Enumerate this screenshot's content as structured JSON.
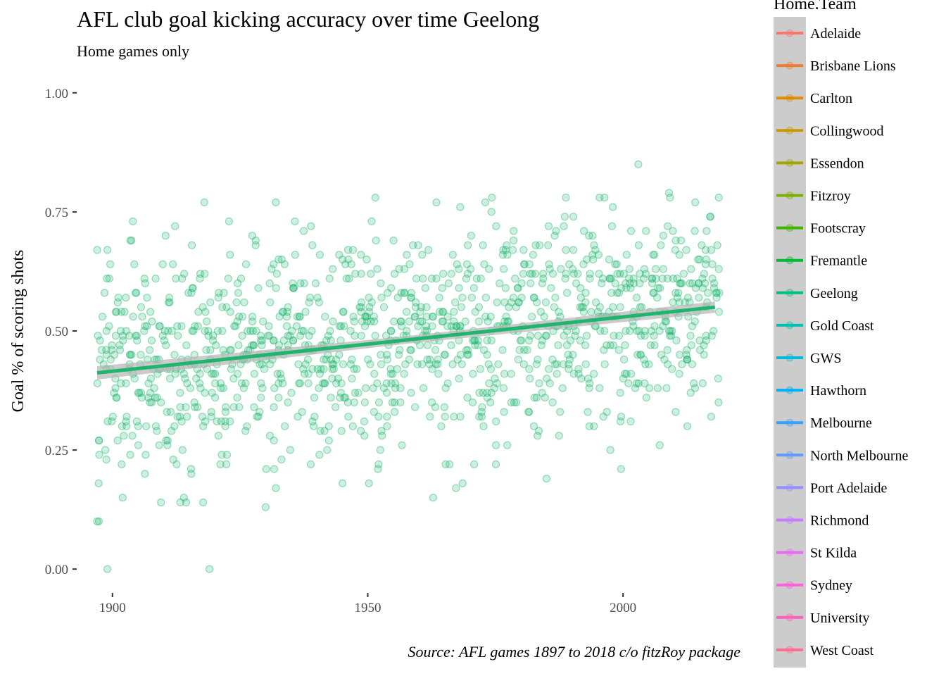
{
  "chart_data": {
    "type": "scatter",
    "title": "AFL club goal kicking accuracy over time Geelong",
    "subtitle": "Home games only",
    "caption": "Source: AFL games 1897 to 2018 c/o fitzRoy package",
    "xlabel": "",
    "ylabel": "Goal % of scoring shots",
    "xlim": [
      1893,
      2023
    ],
    "ylim": [
      -0.05,
      1.05
    ],
    "x_ticks": [
      1900,
      1950,
      2000
    ],
    "y_ticks": [
      0.0,
      0.25,
      0.5,
      0.75,
      1.0
    ],
    "y_tick_labels": [
      "0.00",
      "0.25",
      "0.50",
      "0.75",
      "1.00"
    ],
    "grid": false,
    "point_color": "#1FB56F",
    "point_opacity": 0.22,
    "trend_line": {
      "method": "linear",
      "color": "#1FB56F",
      "band_color": "#B5B5B5",
      "x": [
        1897,
        2018
      ],
      "y": [
        0.412,
        0.55
      ],
      "band_halfwidth": [
        0.014,
        0.008,
        0.012
      ]
    },
    "points_summary": {
      "x_range": [
        1897,
        2018
      ],
      "games_per_year": 10,
      "mean_by_year": "0.412 + 0.00114 * (year - 1897)",
      "sd": 0.11,
      "clip": [
        0.0,
        0.95
      ],
      "seed": 1897
    },
    "notable_points": [
      {
        "x": 1897,
        "y": 0.1
      },
      {
        "x": 1899,
        "y": 0.0
      },
      {
        "x": 1919,
        "y": 0.0
      },
      {
        "x": 1902,
        "y": 0.15
      },
      {
        "x": 1930,
        "y": 0.13
      },
      {
        "x": 1914,
        "y": 0.15
      },
      {
        "x": 1932,
        "y": 0.17
      },
      {
        "x": 1952,
        "y": 0.21
      },
      {
        "x": 1985,
        "y": 0.19
      },
      {
        "x": 2003,
        "y": 0.85
      },
      {
        "x": 2009,
        "y": 0.79
      },
      {
        "x": 1918,
        "y": 0.77
      },
      {
        "x": 1932,
        "y": 0.77
      },
      {
        "x": 1973,
        "y": 0.77
      },
      {
        "x": 1998,
        "y": 0.76
      },
      {
        "x": 1904,
        "y": 0.73
      },
      {
        "x": 1897,
        "y": 0.67
      }
    ],
    "legend": {
      "title": "Home.Team",
      "background": "#CCCCCC",
      "position": "right",
      "entries": [
        {
          "name": "Adelaide",
          "color": "#F8766D"
        },
        {
          "name": "Brisbane Lions",
          "color": "#EE7D33"
        },
        {
          "name": "Carlton",
          "color": "#DE8C00"
        },
        {
          "name": "Collingwood",
          "color": "#C99800"
        },
        {
          "name": "Essendon",
          "color": "#A3A500"
        },
        {
          "name": "Fitzroy",
          "color": "#7CAE00"
        },
        {
          "name": "Footscray",
          "color": "#3FB500"
        },
        {
          "name": "Fremantle",
          "color": "#00BA38"
        },
        {
          "name": "Geelong",
          "color": "#00BF7D"
        },
        {
          "name": "Gold Coast",
          "color": "#00C0AF"
        },
        {
          "name": "GWS",
          "color": "#00BCD8"
        },
        {
          "name": "Hawthorn",
          "color": "#00B0F6"
        },
        {
          "name": "Melbourne",
          "color": "#35A2FF"
        },
        {
          "name": "North Melbourne",
          "color": "#619CFF"
        },
        {
          "name": "Port Adelaide",
          "color": "#9590FF"
        },
        {
          "name": "Richmond",
          "color": "#C77CFF"
        },
        {
          "name": "St Kilda",
          "color": "#E76BF3"
        },
        {
          "name": "Sydney",
          "color": "#FA62DB"
        },
        {
          "name": "University",
          "color": "#FF62BC"
        },
        {
          "name": "West Coast",
          "color": "#FF6C91"
        }
      ]
    }
  }
}
